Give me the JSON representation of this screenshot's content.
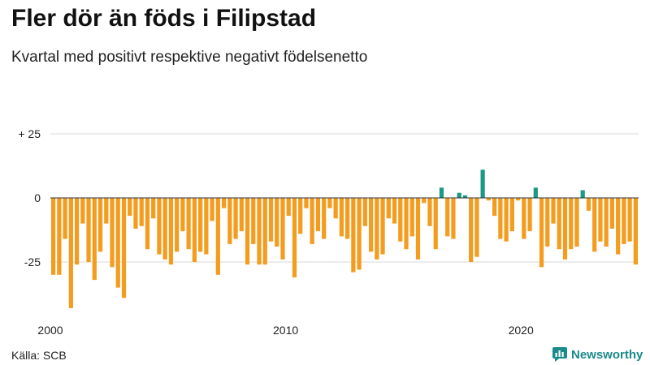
{
  "header": {
    "title": "Fler dör än föds i Filipstad",
    "subtitle": "Kvartal med positivt respektive negativt födelsenetto"
  },
  "footer": {
    "source": "Källa: SCB",
    "brand": "Newsworthy"
  },
  "colors": {
    "negative": "#f39c1e",
    "positive": "#1a9985",
    "grid": "#d9d9d9",
    "zero": "#333333",
    "brand": "#1a8a8a"
  },
  "chart_data": {
    "type": "bar",
    "title": "Fler dör än föds i Filipstad",
    "subtitle": "Kvartal med positivt respektive negativt födelsenetto",
    "xlabel": "",
    "ylabel": "",
    "ylim": [
      -43,
      30
    ],
    "y_ticks": [
      {
        "value": 25,
        "label": "+ 25"
      },
      {
        "value": 0,
        "label": "0"
      },
      {
        "value": -25,
        "label": "-25"
      }
    ],
    "x_ticks": [
      {
        "year": 2000,
        "label": "2000"
      },
      {
        "year": 2010,
        "label": "2010"
      },
      {
        "year": 2020,
        "label": "2020"
      }
    ],
    "start_year": 2000,
    "start_quarter": 1,
    "values": [
      -30,
      -30,
      -16,
      -43,
      -26,
      -10,
      -25,
      -32,
      -21,
      -10,
      -27,
      -35,
      -39,
      -7,
      -12,
      -11,
      -20,
      -8,
      -22,
      -24,
      -26,
      -21,
      -13,
      -20,
      -25,
      -21,
      -22,
      -9,
      -30,
      -4,
      -18,
      -16,
      -13,
      -26,
      -18,
      -26,
      -26,
      -17,
      -19,
      -24,
      -7,
      -31,
      -14,
      -4,
      -18,
      -13,
      -16,
      -4,
      -8,
      -15,
      -16,
      -29,
      -28,
      -11,
      -21,
      -24,
      -22,
      -8,
      -10,
      -17,
      -20,
      -15,
      -24,
      -2,
      -11,
      -20,
      4,
      -15,
      -16,
      2,
      1,
      -25,
      -23,
      11,
      -1,
      -7,
      -16,
      -17,
      -13,
      -1,
      -16,
      -13,
      4,
      -27,
      -19,
      -10,
      -20,
      -24,
      -20,
      -19,
      3,
      -5,
      -21,
      -17,
      -19,
      -12,
      -22,
      -18,
      -17,
      -26
    ]
  }
}
